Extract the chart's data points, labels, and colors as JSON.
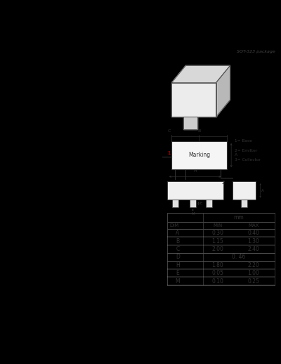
{
  "background_color": "#000000",
  "panel_bg": "#ffffff",
  "title": "SOT-323 package",
  "pin_labels": [
    "1= Base",
    "2= Emitter",
    "3= Collector"
  ],
  "table_rows": [
    [
      "A",
      "0.30",
      "0.40"
    ],
    [
      "B",
      "1.15",
      "1.30"
    ],
    [
      "C",
      "2.00",
      "2.40"
    ],
    [
      "D",
      "0.46",
      ""
    ],
    [
      "H",
      "1.80",
      "2.20"
    ],
    [
      "E",
      "0.05",
      "1.00"
    ],
    [
      "M",
      "0.10",
      "0.25"
    ]
  ]
}
